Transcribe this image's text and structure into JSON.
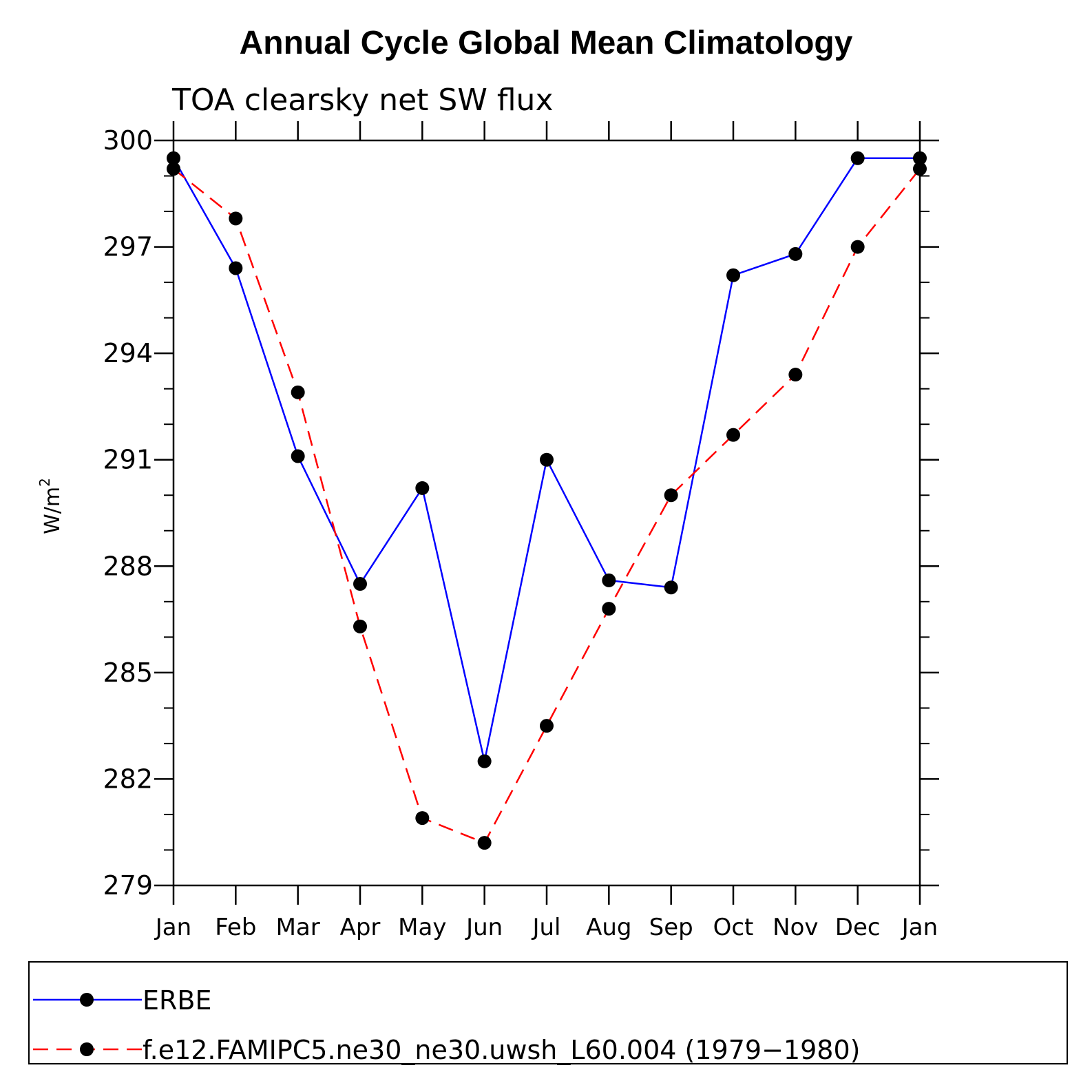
{
  "chart_data": {
    "type": "line",
    "title": "Annual Cycle Global Mean Climatology",
    "subtitle": "TOA clearsky net SW flux",
    "ylabel": "W/m",
    "ylabel_superscript": "2",
    "xlabel": "",
    "categories": [
      "Jan",
      "Feb",
      "Mar",
      "Apr",
      "May",
      "Jun",
      "Jul",
      "Aug",
      "Sep",
      "Oct",
      "Nov",
      "Dec",
      "Jan"
    ],
    "ylim": [
      279,
      300
    ],
    "yticks": [
      279,
      282,
      285,
      288,
      291,
      294,
      297,
      300
    ],
    "series": [
      {
        "name": "ERBE",
        "color": "#0000ff",
        "dash": "solid",
        "values": [
          299.5,
          296.4,
          291.1,
          287.5,
          290.2,
          282.5,
          291.0,
          287.6,
          287.4,
          296.2,
          296.8,
          299.5,
          299.5
        ]
      },
      {
        "name": "f.e12.FAMIPC5.ne30_ne30.uwsh_L60.004 (1979−1980)",
        "color": "#ff0000",
        "dash": "dashed",
        "values": [
          299.2,
          297.8,
          292.9,
          286.3,
          280.9,
          280.2,
          283.5,
          286.8,
          290.0,
          291.7,
          293.4,
          297.0,
          299.2
        ]
      }
    ],
    "legend_position": "bottom"
  }
}
